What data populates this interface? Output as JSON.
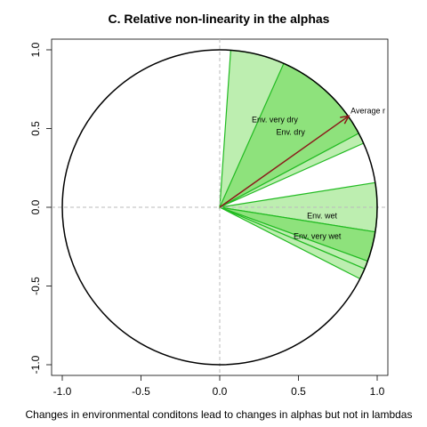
{
  "chart_data": {
    "type": "polar-wedge",
    "title": "C. Relative non-linearity in the alphas",
    "xlabel": "Changes in environmental conditons lead to changes in alphas but not in lambdas",
    "ylabel": "",
    "xlim": [
      -1.05,
      1.05
    ],
    "ylim": [
      -1.05,
      1.05
    ],
    "xticks": [
      -1.0,
      -0.5,
      0.0,
      0.5,
      1.0
    ],
    "yticks": [
      -1.0,
      -0.5,
      0.0,
      0.5,
      1.0
    ],
    "xtick_labels": [
      "-1.0",
      "-0.5",
      "0.0",
      "0.5",
      "1.0"
    ],
    "ytick_labels": [
      "-1.0",
      "-0.5",
      "0.0",
      "0.5",
      "1.0"
    ],
    "circle_radius": 1.0,
    "colors": {
      "light_fill": "#bdeeb0",
      "dark_fill": "#8ee27c",
      "wedge_stroke": "#22bb22",
      "arrow": "#8b1a1a",
      "zero_line": "#bbbbbb",
      "circle": "#000000"
    },
    "wedges": [
      {
        "start_deg": 57,
        "end_deg": 86,
        "fill": "light"
      },
      {
        "start_deg": 28,
        "end_deg": 66,
        "fill": "dark"
      },
      {
        "start_deg": 24,
        "end_deg": 28,
        "fill": "light"
      },
      {
        "start_deg": -9,
        "end_deg": 9,
        "fill": "light"
      },
      {
        "start_deg": -20,
        "end_deg": -9,
        "fill": "dark"
      },
      {
        "start_deg": -23,
        "end_deg": -20,
        "fill": "light"
      },
      {
        "start_deg": -27,
        "end_deg": -23,
        "fill": "light"
      }
    ],
    "arrow": {
      "x": 0.82,
      "y": 0.58,
      "label": "Average r"
    },
    "annotations": [
      {
        "text": "Env. very dry",
        "x": 0.35,
        "y": 0.54
      },
      {
        "text": "Env. dry",
        "x": 0.45,
        "y": 0.46
      },
      {
        "text": "Env. wet",
        "x": 0.65,
        "y": -0.07
      },
      {
        "text": "Env. very wet",
        "x": 0.62,
        "y": -0.2
      }
    ]
  }
}
